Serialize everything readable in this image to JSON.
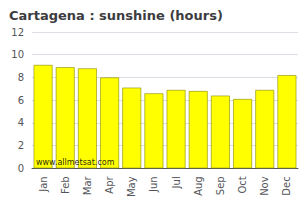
{
  "chart_data": {
    "type": "bar",
    "title": "Cartagena : sunshine (hours)",
    "categories": [
      "Jan",
      "Feb",
      "Mar",
      "Apr",
      "May",
      "Jun",
      "Jul",
      "Aug",
      "Sep",
      "Oct",
      "Nov",
      "Dec"
    ],
    "values": [
      9.1,
      8.9,
      8.8,
      8.0,
      7.1,
      6.6,
      6.9,
      6.8,
      6.4,
      6.1,
      6.9,
      8.2
    ],
    "color": "#FFFF00",
    "ylim": [
      0,
      12
    ],
    "yticks": [
      0,
      2,
      4,
      6,
      8,
      10,
      12
    ],
    "grid": true,
    "annotations": [
      "www.allmetsat.com"
    ]
  }
}
